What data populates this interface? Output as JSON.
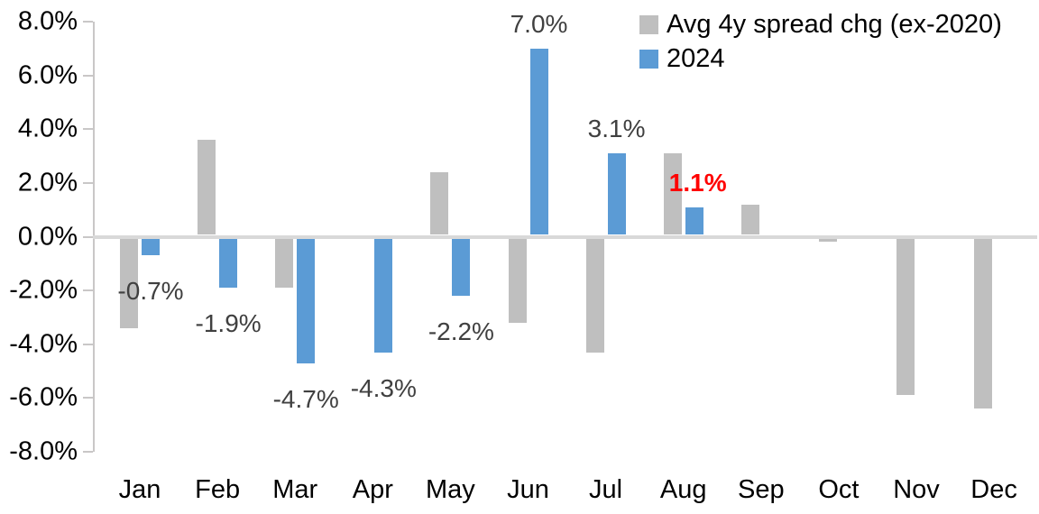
{
  "chart_data": {
    "type": "bar",
    "title": "",
    "xlabel": "",
    "ylabel": "",
    "categories": [
      "Jan",
      "Feb",
      "Mar",
      "Apr",
      "May",
      "Jun",
      "Jul",
      "Aug",
      "Sep",
      "Oct",
      "Nov",
      "Dec"
    ],
    "series": [
      {
        "name": "Avg 4y spread chg (ex-2020)",
        "color": "#bfbfbf",
        "values": [
          -3.4,
          3.6,
          -1.9,
          0.0,
          2.4,
          -3.2,
          -4.3,
          3.1,
          1.2,
          -0.2,
          -5.9,
          -6.4
        ]
      },
      {
        "name": "2024",
        "color": "#5b9bd5",
        "values": [
          -0.7,
          -1.9,
          -4.7,
          -4.3,
          -2.2,
          7.0,
          3.1,
          1.1,
          null,
          null,
          null,
          null
        ],
        "data_labels": [
          "-0.7%",
          "-1.9%",
          "-4.7%",
          "-4.3%",
          "-2.2%",
          "7.0%",
          "3.1%",
          "1.1%",
          null,
          null,
          null,
          null
        ],
        "highlight_label_index": 7
      }
    ],
    "ylim": [
      -8,
      8
    ],
    "y_ticks": [
      8,
      6,
      4,
      2,
      0,
      -2,
      -4,
      -6,
      -8
    ],
    "y_tick_labels": [
      "8.0%",
      "6.0%",
      "4.0%",
      "2.0%",
      "0.0%",
      "-2.0%",
      "-4.0%",
      "-6.0%",
      "-8.0%"
    ],
    "grid": "zero-line-only",
    "legend_position": "top-right",
    "colors": {
      "data_label": "#404040",
      "highlight_label": "#ff0000",
      "axis_line": "#c9c7c7",
      "zero_line": "#d9d9d9",
      "tick_text": "#000000"
    }
  }
}
